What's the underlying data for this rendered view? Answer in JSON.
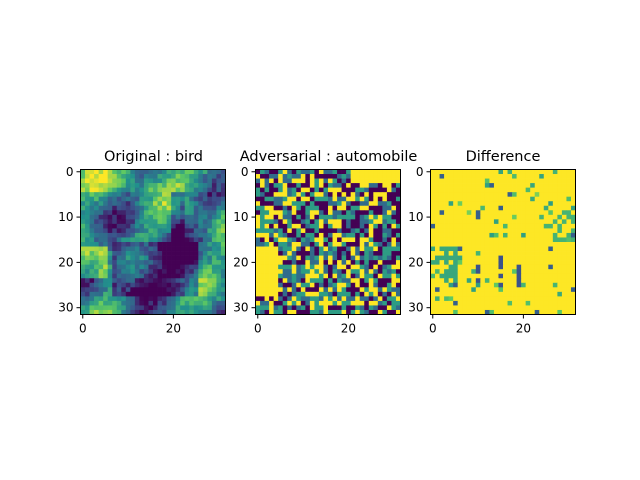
{
  "chart_data": [
    {
      "type": "heatmap",
      "title": "Original : bird",
      "image_size": [
        32,
        32
      ],
      "xticks": [
        0,
        20
      ],
      "yticks": [
        0,
        10,
        20,
        30
      ],
      "colormap": "viridis",
      "cmap_colors": [
        "#440154",
        "#3b528b",
        "#21918c",
        "#5ec962",
        "#fde725"
      ]
    },
    {
      "type": "heatmap",
      "title": "Adversarial : automobile",
      "image_size": [
        32,
        32
      ],
      "xticks": [
        0,
        20
      ],
      "yticks": [
        0,
        10,
        20,
        30
      ],
      "colormap": "viridis",
      "cmap_colors": [
        "#440154",
        "#3b528b",
        "#21918c",
        "#5ec962",
        "#fde725"
      ]
    },
    {
      "type": "heatmap",
      "title": "Difference",
      "image_size": [
        32,
        32
      ],
      "xticks": [
        0,
        20
      ],
      "yticks": [
        0,
        10,
        20,
        30
      ],
      "colormap": "viridis",
      "cmap_colors": [
        "#440154",
        "#3b528b",
        "#21918c",
        "#5ec962",
        "#fde725"
      ]
    }
  ]
}
